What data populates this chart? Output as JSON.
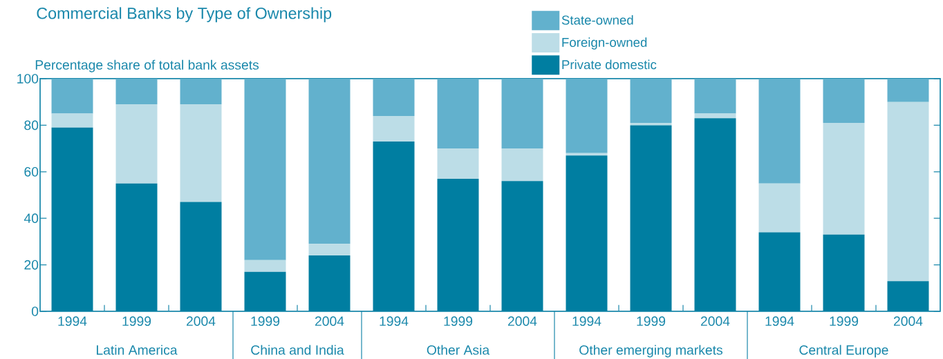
{
  "chart_data": {
    "type": "bar",
    "stacked": true,
    "title": "Commercial Banks by Type of Ownership",
    "ylabel": "Percentage share of total bank assets",
    "categories": [
      "1994",
      "1999",
      "2004",
      "1999",
      "2004",
      "1994",
      "1999",
      "2004",
      "1994",
      "1999",
      "2004",
      "1994",
      "1999",
      "2004"
    ],
    "series": [
      {
        "name": "Private domestic",
        "color": "#007ea1",
        "values": [
          79,
          55,
          47,
          17,
          24,
          73,
          57,
          56,
          67,
          80,
          83,
          34,
          33,
          13
        ]
      },
      {
        "name": "Foreign-owned",
        "color": "#bcdde7",
        "values": [
          6,
          34,
          42,
          5,
          5,
          11,
          13,
          14,
          1,
          1,
          2,
          21,
          48,
          77
        ]
      },
      {
        "name": "State-owned",
        "color": "#62b1cd",
        "values": [
          15,
          11,
          11,
          78,
          71,
          16,
          30,
          30,
          32,
          19,
          15,
          45,
          19,
          10
        ]
      }
    ],
    "annotations": [
      "Latin America",
      "China and India",
      "Other Asia",
      "Other emerging markets",
      "Central Europe"
    ],
    "ylim": [
      0,
      100
    ],
    "yticks": [
      0,
      20,
      40,
      60,
      80,
      100
    ],
    "legend": "top"
  }
}
